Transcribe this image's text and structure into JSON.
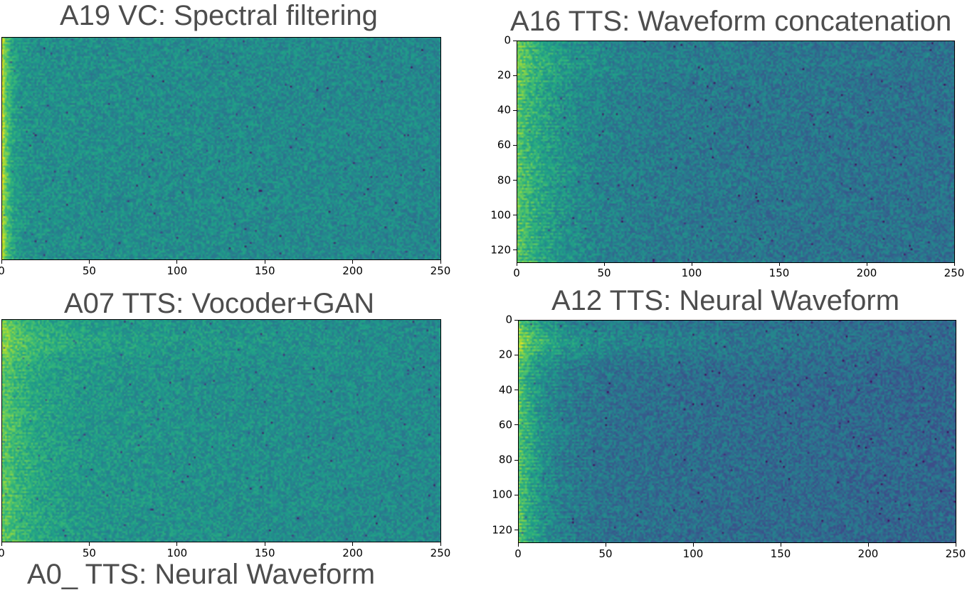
{
  "chart_data": [
    {
      "type": "heatmap",
      "title": "A19 VC: Spectral filtering",
      "xlim": [
        0,
        250
      ],
      "ylim": [
        0,
        127
      ],
      "x_ticks": [
        "0",
        "50",
        "100",
        "150",
        "200",
        "250"
      ],
      "y_ticks": [],
      "colormap": "viridis",
      "profile": {
        "base": 0.5,
        "low_freq_boost": 0.42,
        "low_freq_width": 4,
        "band_boost": 0.0,
        "high_freq_drop": 0.04,
        "stripes": 0.05,
        "noise": 0.22
      }
    },
    {
      "type": "heatmap",
      "title": "A16 TTS: Waveform concatenation",
      "xlim": [
        0,
        250
      ],
      "ylim": [
        0,
        127
      ],
      "x_ticks": [
        "0",
        "50",
        "100",
        "150",
        "200",
        "250"
      ],
      "y_ticks": [
        "0",
        "20",
        "40",
        "60",
        "80",
        "100",
        "120"
      ],
      "colormap": "viridis",
      "profile": {
        "base": 0.42,
        "low_freq_boost": 0.32,
        "low_freq_width": 22,
        "band_boost": 0.05,
        "high_freq_drop": 0.05,
        "stripes": 0.1,
        "noise": 0.24
      }
    },
    {
      "type": "heatmap",
      "title": "A07 TTS: Vocoder+GAN",
      "xlim": [
        0,
        250
      ],
      "ylim": [
        0,
        127
      ],
      "x_ticks": [
        "0",
        "50",
        "100",
        "150",
        "200",
        "250"
      ],
      "y_ticks": [],
      "colormap": "viridis",
      "profile": {
        "base": 0.53,
        "low_freq_boost": 0.22,
        "low_freq_width": 18,
        "band_boost": 0.08,
        "high_freq_drop": 0.06,
        "stripes": 0.07,
        "noise": 0.22
      }
    },
    {
      "type": "heatmap",
      "title": "A12 TTS: Neural Waveform",
      "xlim": [
        0,
        250
      ],
      "ylim": [
        0,
        127
      ],
      "x_ticks": [
        "0",
        "50",
        "100",
        "150",
        "200",
        "250"
      ],
      "y_ticks": [
        "0",
        "20",
        "40",
        "60",
        "80",
        "100",
        "120"
      ],
      "colormap": "viridis",
      "profile": {
        "base": 0.38,
        "low_freq_boost": 0.34,
        "low_freq_width": 14,
        "band_boost": 0.14,
        "high_freq_drop": 0.05,
        "stripes": 0.12,
        "noise": 0.24
      }
    }
  ],
  "partial_title": "A0_ TTS: Neural Waveform"
}
